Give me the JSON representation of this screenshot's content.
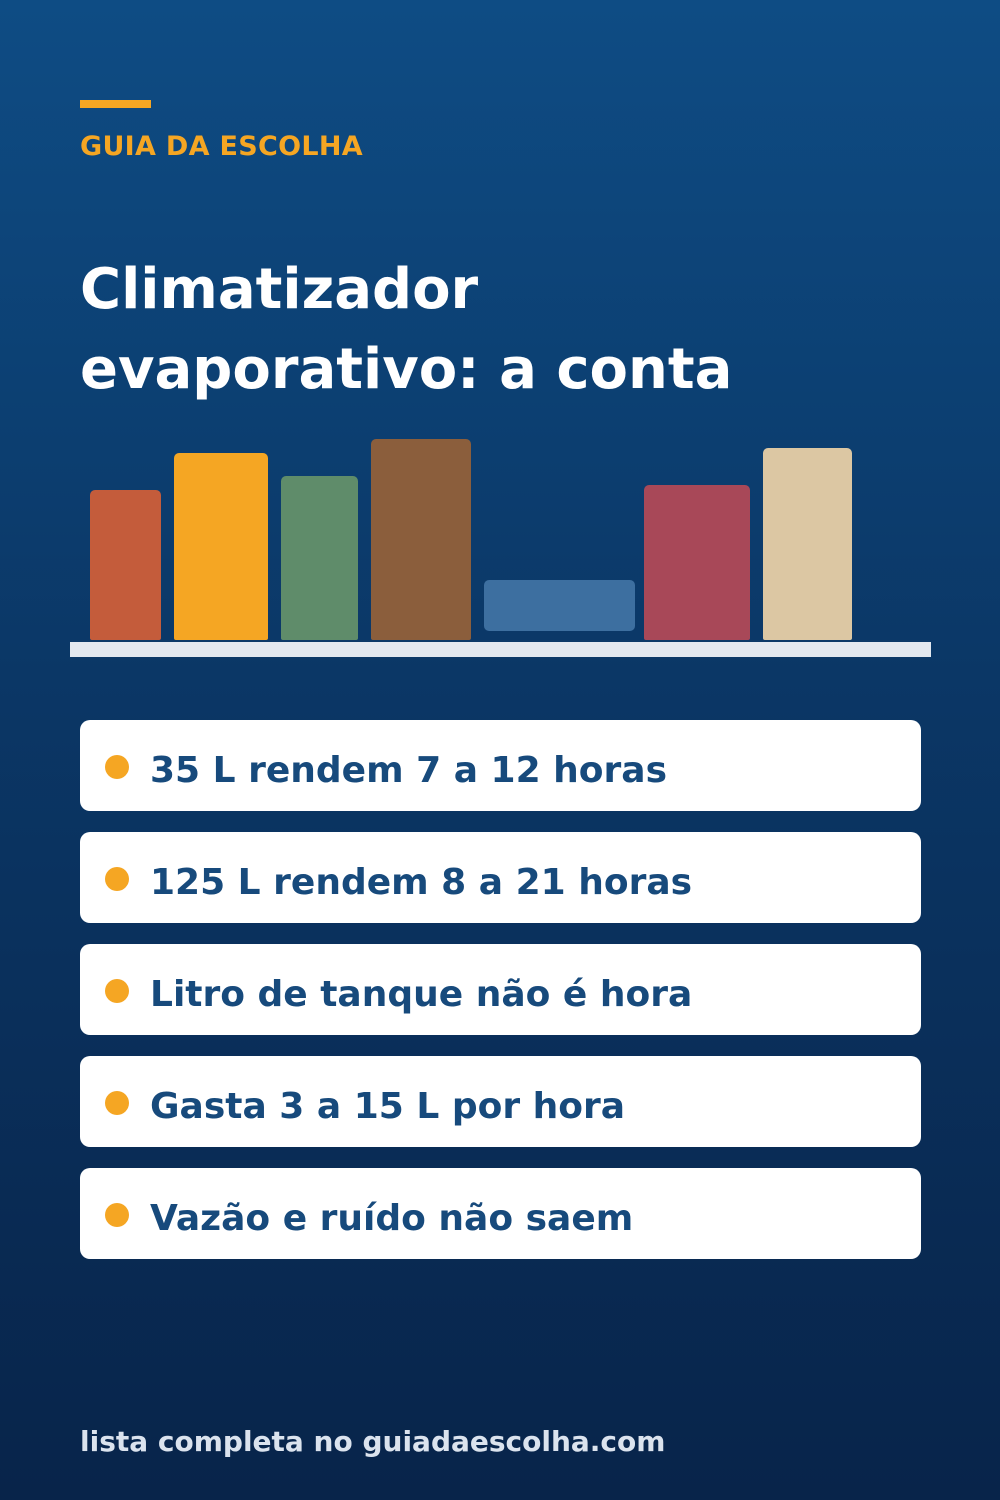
{
  "brand": {
    "label": "GUIA DA ESCOLHA",
    "accent_color": "#f5a623"
  },
  "title": {
    "line1": "Climatizador",
    "line2": "evaporativo: a conta"
  },
  "illustration": {
    "type": "bookshelf",
    "book_colors": [
      "#c45c3b",
      "#f5a623",
      "#5f8c6a",
      "#8b5e3c",
      "#3d6fa0",
      "#a84858",
      "#dcc7a3"
    ],
    "shelf_color": "#e3e8ef"
  },
  "points": [
    {
      "text": "35 L rendem 7 a 12 horas"
    },
    {
      "text": "125 L rendem 8 a 21 horas"
    },
    {
      "text": "Litro de tanque não é hora"
    },
    {
      "text": "Gasta 3 a 15 L por hora"
    },
    {
      "text": "Vazão e ruído não saem"
    }
  ],
  "footer": {
    "text": "lista completa no guiadaescolha.com"
  }
}
